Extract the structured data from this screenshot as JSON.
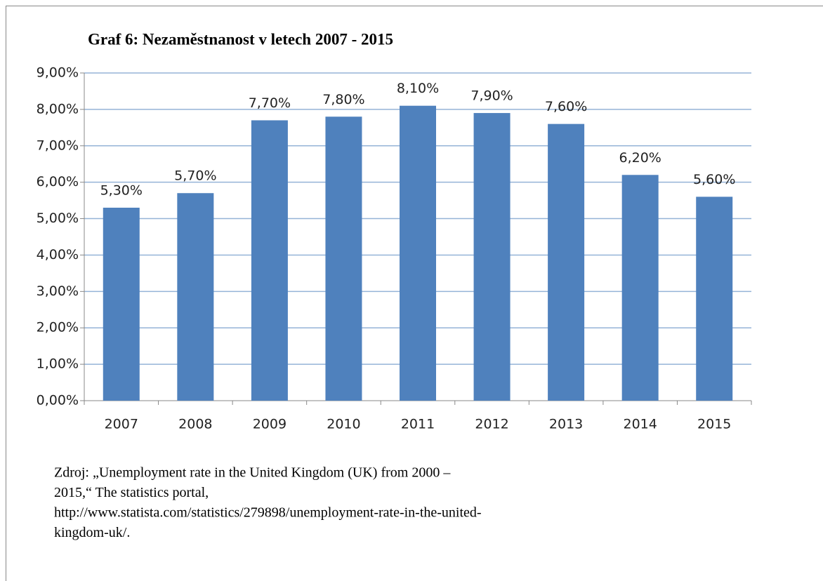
{
  "chart_data": {
    "type": "bar",
    "title": "Graf 6: Nezaměstnanost v letech 2007 - 2015",
    "categories": [
      "2007",
      "2008",
      "2009",
      "2010",
      "2011",
      "2012",
      "2013",
      "2014",
      "2015"
    ],
    "values": [
      5.3,
      5.7,
      7.7,
      7.8,
      8.1,
      7.9,
      7.6,
      6.2,
      5.6
    ],
    "value_labels": [
      "5,30%",
      "5,70%",
      "7,70%",
      "7,80%",
      "8,10%",
      "7,90%",
      "7,60%",
      "6,20%",
      "5,60%"
    ],
    "color": "#4f81bd",
    "ylim": [
      0,
      9
    ],
    "yticks": [
      {
        "value": 0,
        "label": "0,00%"
      },
      {
        "value": 1,
        "label": "1,00%"
      },
      {
        "value": 2,
        "label": "2,00%"
      },
      {
        "value": 3,
        "label": "3,00%"
      },
      {
        "value": 4,
        "label": "4,00%"
      },
      {
        "value": 5,
        "label": "5,00%"
      },
      {
        "value": 6,
        "label": "6,00%"
      },
      {
        "value": 7,
        "label": "7,00%"
      },
      {
        "value": 8,
        "label": "8,00%"
      },
      {
        "value": 9,
        "label": "9,00%"
      }
    ],
    "grid": true,
    "source": [
      "Zdroj: „Unemployment rate in the United Kingdom (UK) from 2000 –",
      "2015,“ The statistics portal,",
      "http://www.statista.com/statistics/279898/unemployment-rate-in-the-united-",
      "kingdom-uk/."
    ]
  }
}
